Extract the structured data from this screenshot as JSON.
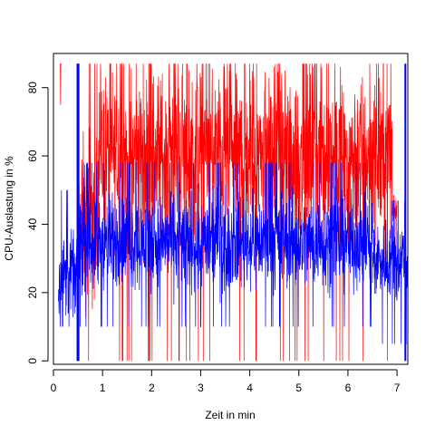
{
  "chart_data": {
    "type": "line",
    "title": "",
    "xlabel": "Zeit in min",
    "ylabel": "CPU-Auslastung in %",
    "xlim": [
      0,
      7.22
    ],
    "ylim": [
      -1,
      90
    ],
    "xticks": [
      0,
      1,
      2,
      3,
      4,
      5,
      6,
      7
    ],
    "yticks": [
      0,
      20,
      40,
      60,
      80
    ],
    "grid": false,
    "legend": "none",
    "series": [
      {
        "color": "#ff0000",
        "description": "high-frequency noisy trace, mostly 45-75%, frequent spikes to 0 and 87",
        "segments": [
          {
            "x_start": 0.13,
            "x_end": 0.15,
            "mean": 87,
            "low": 0,
            "high": 87
          },
          {
            "x_start": 0.5,
            "x_end": 0.9,
            "mean": 40,
            "low": 0,
            "high": 87
          },
          {
            "x_start": 0.9,
            "x_end": 6.9,
            "mean": 60,
            "low": 0,
            "high": 87
          },
          {
            "x_start": 6.9,
            "x_end": 7.0,
            "mean": 45,
            "low": 30,
            "high": 55
          }
        ]
      },
      {
        "color": "#0000ff",
        "description": "high-frequency noisy trace, mostly 20-50%, overplotted on red",
        "segments": [
          {
            "x_start": 0.1,
            "x_end": 0.5,
            "mean": 25,
            "low": 10,
            "high": 50
          },
          {
            "x_start": 0.5,
            "x_end": 6.5,
            "mean": 35,
            "low": 10,
            "high": 58
          },
          {
            "x_start": 6.5,
            "x_end": 7.22,
            "mean": 30,
            "low": 5,
            "high": 47
          }
        ],
        "spikes": [
          {
            "x": 0.49,
            "low": 0,
            "high": 87
          },
          {
            "x": 0.51,
            "low": 0,
            "high": 87
          },
          {
            "x": 7.17,
            "low": 0,
            "high": 87
          }
        ]
      }
    ]
  }
}
